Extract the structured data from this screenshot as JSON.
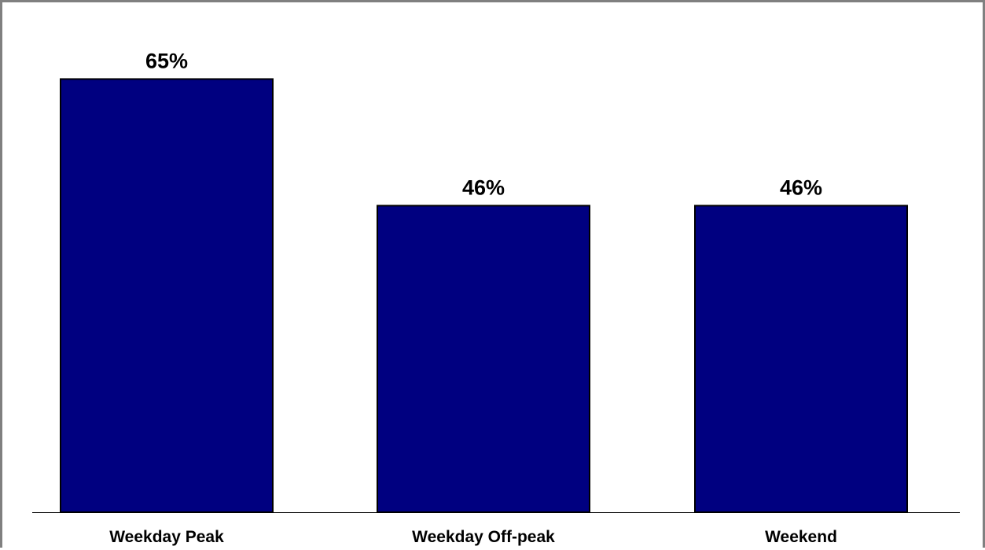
{
  "chart_data": {
    "type": "bar",
    "categories": [
      "Weekday Peak",
      "Weekday Off-peak",
      "Weekend"
    ],
    "values": [
      65,
      46,
      46
    ],
    "value_labels": [
      "65%",
      "46%",
      "46%"
    ],
    "ylim": [
      0,
      70
    ],
    "grid": false,
    "colors": {
      "bar_fill": "#000080",
      "bar_stroke": "#000000",
      "frame": "#808080"
    }
  }
}
